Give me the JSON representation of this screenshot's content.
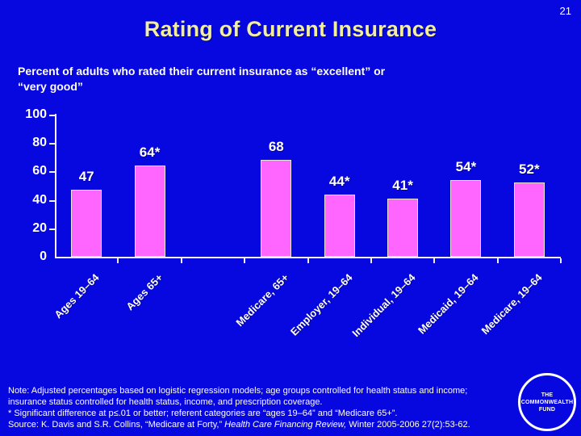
{
  "slide": {
    "number": "21",
    "title": "Rating of Current Insurance",
    "subtitle_line1": "Percent of adults who rated their current insurance as “excellent” or",
    "subtitle_line2": "“very good”",
    "notes": {
      "line1": "Note: Adjusted percentages based on logistic regression models; age groups controlled for health status and income;",
      "line2": "insurance status controlled for health status, income, and prescription coverage.",
      "line3": "* Significant difference at p≤.01 or better; referent categories are “ages 19–64” and “Medicare 65+”.",
      "source_prefix": "Source: K. Davis and S.R. Collins, “Medicare at Forty,” ",
      "source_italic": "Health Care Financing Review,",
      "source_suffix": " Winter 2005-2006 27(2):53-62."
    },
    "logo": {
      "line1": "THE",
      "line2": "COMMONWEALTH",
      "line3": "FUND"
    }
  },
  "chart_data": {
    "type": "bar",
    "title": "Percent of adults who rated their current insurance as “excellent” or “very good”",
    "categories": [
      "Ages 19–64",
      "Ages 65+",
      "Medicare, 65+",
      "Employer, 19–64",
      "Individual, 19–64",
      "Medicaid, 19–64",
      "Medicare, 19–64"
    ],
    "values": [
      47,
      64,
      68,
      44,
      41,
      54,
      52
    ],
    "data_labels": [
      "47",
      "64*",
      "68",
      "44*",
      "41*",
      "54*",
      "52*"
    ],
    "slot_index": [
      0,
      1,
      3,
      4,
      5,
      6,
      7
    ],
    "total_slots": 8,
    "gap_note": "empty category slot between Ages 65+ and Medicare, 65+",
    "y_ticks": [
      0,
      20,
      40,
      60,
      80,
      100
    ],
    "ylim": [
      0,
      100
    ],
    "xlabel": "",
    "ylabel": "",
    "grid": false,
    "legend": false,
    "bar_color": "#FF66FF",
    "axis_color": "#F2EFE2",
    "label_rotation": 45
  },
  "colors": {
    "background": "#0707DF",
    "title_text": "#F2EE9B",
    "body_text": "#FFFFFF",
    "bar_fill": "#FF66FF"
  }
}
